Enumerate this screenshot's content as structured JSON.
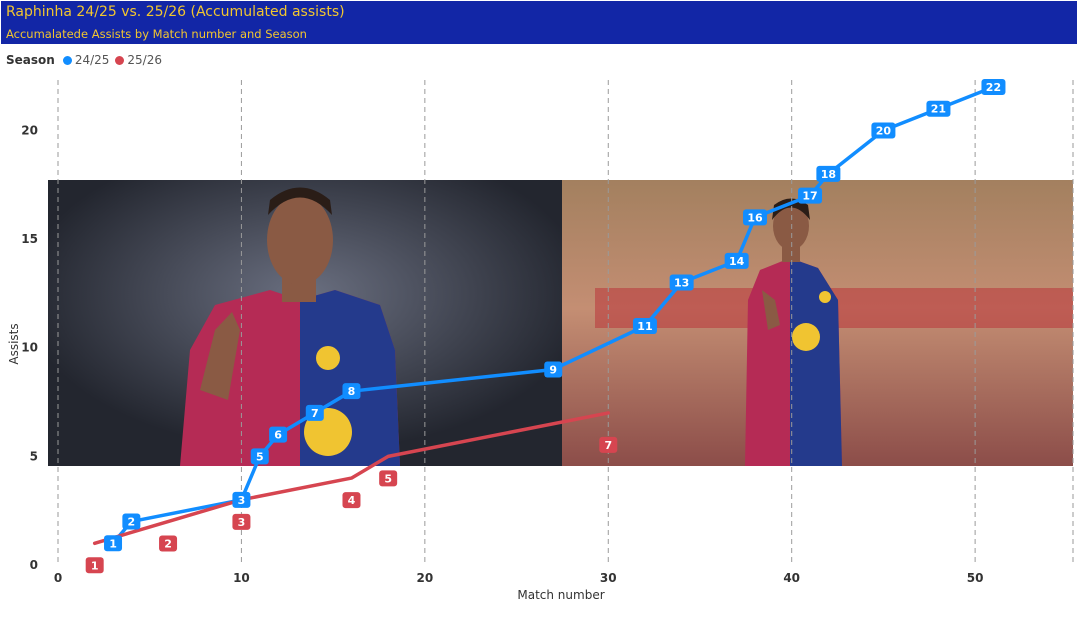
{
  "header": {
    "title": "Raphinha 24/25 vs. 25/26 (Accumulated assists)",
    "subtitle": "Accumalatede Assists by Match number and Season"
  },
  "legend": {
    "title": "Season",
    "items": [
      {
        "label": "24/25",
        "color": "#118dff"
      },
      {
        "label": "25/26",
        "color": "#d64550"
      }
    ]
  },
  "chart_data": {
    "type": "line",
    "title": "Raphinha 24/25 vs. 25/26 (Accumulated assists)",
    "subtitle": "Accumalatede Assists by Match number and Season",
    "xlabel": "Match number",
    "ylabel": "Assists",
    "xlim": [
      0,
      55.5
    ],
    "ylim": [
      0,
      22
    ],
    "xticks": [
      0,
      10,
      20,
      30,
      40,
      50
    ],
    "yticks": [
      0,
      5,
      10,
      15,
      20
    ],
    "grid": "vertical dashed",
    "legend_position": "top-left",
    "background_images": [
      "player-photo-left",
      "player-photo-right"
    ],
    "series": [
      {
        "name": "24/25",
        "color": "#118dff",
        "x": [
          3,
          4,
          10,
          11,
          12,
          14,
          16,
          27,
          32,
          34,
          37,
          38,
          41,
          42,
          45,
          48,
          51
        ],
        "y": [
          1,
          2,
          3,
          5,
          6,
          7,
          8,
          9,
          11,
          13,
          14,
          16,
          17,
          18,
          20,
          21,
          22
        ]
      },
      {
        "name": "25/26",
        "color": "#d64550",
        "x": [
          2,
          6,
          10,
          16,
          18,
          30
        ],
        "y": [
          1,
          2,
          3,
          4,
          5,
          7
        ]
      }
    ]
  }
}
